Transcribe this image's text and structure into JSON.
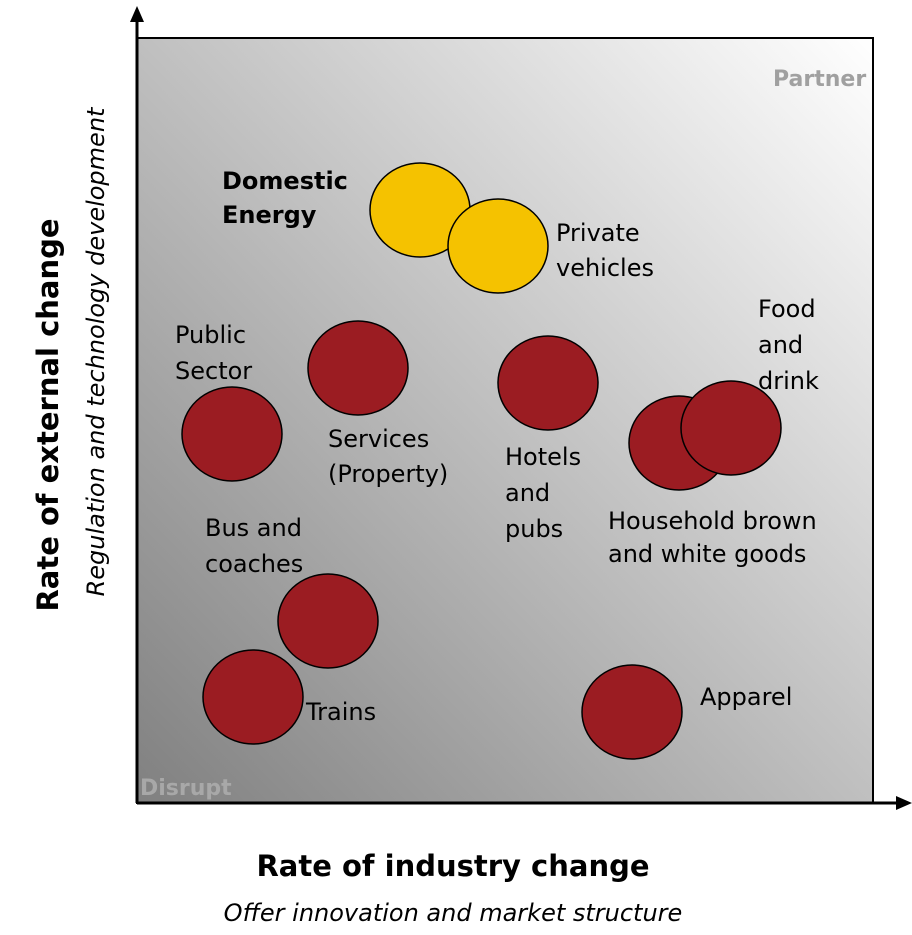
{
  "axes": {
    "x_title": "Rate of industry change",
    "x_subtitle": "Offer innovation and market structure",
    "y_title": "Rate of external change",
    "y_subtitle": "Regulation and technology development"
  },
  "quadrants": {
    "top_right": "Partner",
    "bottom_left": "Disrupt"
  },
  "nodes": [
    {
      "lines": [
        "Domestic",
        "Energy"
      ]
    },
    {
      "lines": [
        "Private",
        "vehicles"
      ]
    },
    {
      "lines": [
        "Public",
        "Sector"
      ]
    },
    {
      "lines": [
        "Services",
        "(Property)"
      ]
    },
    {
      "lines": [
        "Hotels",
        "and",
        "pubs"
      ]
    },
    {
      "lines": [
        "Food",
        "and",
        "drink"
      ]
    },
    {
      "lines": [
        "Household brown",
        "and white goods"
      ]
    },
    {
      "lines": [
        "Bus and",
        "coaches"
      ]
    },
    {
      "lines": [
        "Trains"
      ]
    },
    {
      "lines": [
        "Apparel"
      ]
    }
  ]
}
